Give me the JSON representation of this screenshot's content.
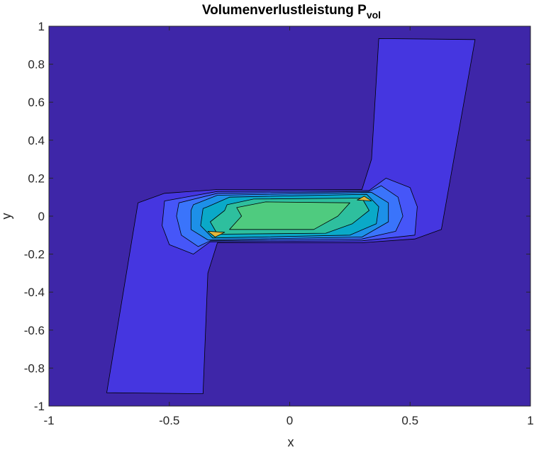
{
  "chart_data": {
    "type": "contour",
    "title": "Volumenverlustleistung P",
    "title_subscript": "vol",
    "xlabel": "x",
    "ylabel": "y",
    "xlim": [
      -1,
      1
    ],
    "ylim": [
      -1,
      1
    ],
    "xticks": [
      -1,
      -0.5,
      0,
      0.5,
      1
    ],
    "xtick_labels": [
      "-1",
      "-0.5",
      "0",
      "0.5",
      "1"
    ],
    "yticks": [
      -1,
      -0.8,
      -0.6,
      -0.4,
      -0.2,
      0,
      0.2,
      0.4,
      0.6,
      0.8,
      1
    ],
    "ytick_labels": [
      "-1",
      "-0.8",
      "-0.6",
      "-0.4",
      "-0.2",
      "0",
      "0.2",
      "0.4",
      "0.6",
      "0.8",
      "1"
    ],
    "grid": false,
    "colormap": "parula",
    "background_color": "#3e26a8",
    "regions": [
      {
        "name": "z-shaped-body",
        "level": 1,
        "color": "#4536e0",
        "polygon": [
          [
            -0.76,
            -0.93
          ],
          [
            -0.36,
            -0.935
          ],
          [
            -0.34,
            -0.3
          ],
          [
            -0.3,
            -0.14
          ],
          [
            0.3,
            -0.14
          ],
          [
            0.52,
            -0.12
          ],
          [
            0.63,
            -0.07
          ],
          [
            0.77,
            0.93
          ],
          [
            0.37,
            0.935
          ],
          [
            0.34,
            0.3
          ],
          [
            0.3,
            0.14
          ],
          [
            -0.3,
            0.14
          ],
          [
            -0.52,
            0.12
          ],
          [
            -0.63,
            0.07
          ]
        ]
      },
      {
        "name": "contour-band-2",
        "level": 2,
        "color": "#4656f8",
        "polygon": [
          [
            -0.52,
            0.08
          ],
          [
            -0.3,
            0.13
          ],
          [
            0.33,
            0.135
          ],
          [
            0.4,
            0.2
          ],
          [
            0.5,
            0.15
          ],
          [
            0.53,
            0.05
          ],
          [
            0.52,
            -0.1
          ],
          [
            0.3,
            -0.13
          ],
          [
            -0.33,
            -0.135
          ],
          [
            -0.4,
            -0.2
          ],
          [
            -0.5,
            -0.15
          ],
          [
            -0.53,
            -0.05
          ]
        ]
      },
      {
        "name": "contour-band-3",
        "level": 3,
        "color": "#3a74fb",
        "polygon": [
          [
            -0.46,
            0.07
          ],
          [
            -0.3,
            0.12
          ],
          [
            0.33,
            0.13
          ],
          [
            0.38,
            0.16
          ],
          [
            0.45,
            0.1
          ],
          [
            0.47,
            0.0
          ],
          [
            0.44,
            -0.08
          ],
          [
            0.3,
            -0.12
          ],
          [
            -0.33,
            -0.13
          ],
          [
            -0.38,
            -0.16
          ],
          [
            -0.45,
            -0.1
          ],
          [
            -0.47,
            0.0
          ]
        ]
      },
      {
        "name": "contour-band-4",
        "level": 4,
        "color": "#1d90e8",
        "polygon": [
          [
            -0.4,
            0.06
          ],
          [
            -0.3,
            0.11
          ],
          [
            0.34,
            0.125
          ],
          [
            0.41,
            0.07
          ],
          [
            0.41,
            -0.03
          ],
          [
            0.3,
            -0.11
          ],
          [
            -0.34,
            -0.125
          ],
          [
            -0.41,
            -0.07
          ],
          [
            -0.41,
            0.03
          ]
        ]
      },
      {
        "name": "contour-band-5",
        "level": 5,
        "color": "#0aa9c8",
        "polygon": [
          [
            -0.34,
            0.05
          ],
          [
            -0.25,
            0.1
          ],
          [
            0.32,
            0.115
          ],
          [
            0.37,
            0.05
          ],
          [
            0.36,
            -0.04
          ],
          [
            0.25,
            -0.1
          ],
          [
            -0.32,
            -0.115
          ],
          [
            -0.37,
            -0.05
          ],
          [
            -0.36,
            0.04
          ]
        ]
      },
      {
        "name": "contour-band-6",
        "level": 6,
        "color": "#2ebf9e",
        "polygon": [
          [
            -0.26,
            0.06
          ],
          [
            -0.15,
            0.09
          ],
          [
            0.3,
            0.095
          ],
          [
            0.33,
            0.03
          ],
          [
            0.26,
            -0.04
          ],
          [
            0.15,
            -0.09
          ],
          [
            -0.3,
            -0.095
          ],
          [
            -0.33,
            -0.03
          ],
          [
            -0.27,
            0.03
          ]
        ]
      },
      {
        "name": "contour-band-7",
        "level": 7,
        "color": "#4fcb7f",
        "polygon": [
          [
            -0.22,
            0.045
          ],
          [
            -0.1,
            0.075
          ],
          [
            0.25,
            0.07
          ],
          [
            0.2,
            0.0
          ],
          [
            0.1,
            -0.07
          ],
          [
            -0.25,
            -0.07
          ],
          [
            -0.2,
            0.0
          ]
        ]
      },
      {
        "name": "hotspot-left",
        "level": 8,
        "color": "#e3b73b",
        "polygon": [
          [
            -0.34,
            -0.08
          ],
          [
            -0.27,
            -0.085
          ],
          [
            -0.31,
            -0.11
          ]
        ]
      },
      {
        "name": "hotspot-right",
        "level": 8,
        "color": "#e3b73b",
        "polygon": [
          [
            0.28,
            0.085
          ],
          [
            0.34,
            0.08
          ],
          [
            0.31,
            0.105
          ]
        ]
      }
    ]
  }
}
